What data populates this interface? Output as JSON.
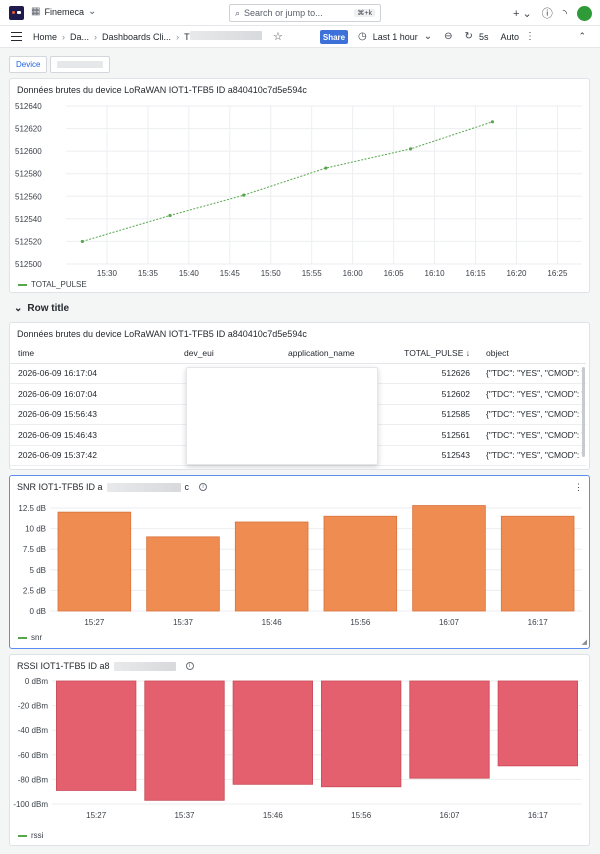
{
  "topbar": {
    "org_name": "Finemeca",
    "search_placeholder": "Search or jump to...",
    "search_shortcut": "⌘+k",
    "icons": [
      "grafana-logo",
      "org-icon",
      "chevron-down-icon",
      "search-icon",
      "plus-icon",
      "chevron-down-icon",
      "help-icon",
      "rss-icon",
      "avatar"
    ]
  },
  "navbar": {
    "home": "Home",
    "crumb_1": "Da...",
    "crumb_2": "Dashboards Cli...",
    "crumb_3": "T",
    "share": "Share",
    "time_range": "Last 1 hour",
    "refresh": "5s",
    "auto": "Auto"
  },
  "variables": {
    "device_label": "Device"
  },
  "panel1": {
    "title": "Données brutes du device LoRaWAN IOT1-TFB5 ID a840410c7d5e594c",
    "legend": "TOTAL_PULSE",
    "color": "#56a64b"
  },
  "row": {
    "title": "Row title"
  },
  "panel2": {
    "title": "Données brutes du device LoRaWAN IOT1-TFB5 ID a840410c7d5e594c",
    "columns": [
      "time",
      "dev_eui",
      "application_name",
      "TOTAL_PULSE",
      "object"
    ],
    "sort_indicator": "↓",
    "rows": [
      [
        "2026-06-09 16:17:04",
        "",
        "",
        "512626",
        "{\"TDC\": \"YES\", \"CMOD\": \""
      ],
      [
        "2026-06-09 16:07:04",
        "",
        "",
        "512602",
        "{\"TDC\": \"YES\", \"CMOD\": \""
      ],
      [
        "2026-06-09 15:56:43",
        "",
        "",
        "512585",
        "{\"TDC\": \"YES\", \"CMOD\": \""
      ],
      [
        "2026-06-09 15:46:43",
        "",
        "",
        "512561",
        "{\"TDC\": \"YES\", \"CMOD\": \""
      ],
      [
        "2026-06-09 15:37:42",
        "",
        "",
        "512543",
        "{\"TDC\": \"YES\", \"CMOD\": \""
      ]
    ]
  },
  "panel3": {
    "title_prefix": "SNR IOT1-TFB5 ID a",
    "title_suffix": "c",
    "legend": "snr",
    "color": "#ef8c52"
  },
  "panel4": {
    "title_prefix": "RSSI IOT1-TFB5 ID a8",
    "legend": "rssi",
    "color": "#e5606e"
  },
  "chart_data": [
    {
      "type": "line",
      "title": "Données brutes du device LoRaWAN IOT1-TFB5 ID a840410c7d5e594c",
      "x_ticks": [
        "15:30",
        "15:35",
        "15:40",
        "15:45",
        "15:50",
        "15:55",
        "16:00",
        "16:05",
        "16:10",
        "16:15",
        "16:20",
        "16:25"
      ],
      "y_ticks": [
        512500,
        512520,
        512540,
        512560,
        512580,
        512600,
        512620,
        512640
      ],
      "ylim": [
        512500,
        512640
      ],
      "series": [
        {
          "name": "TOTAL_PULSE",
          "x": [
            "15:27",
            "15:37:42",
            "15:46:43",
            "15:56:43",
            "16:07:04",
            "16:17:04"
          ],
          "values": [
            512520,
            512543,
            512561,
            512585,
            512602,
            512626
          ]
        }
      ],
      "grid": true,
      "legend": "bottom-left"
    },
    {
      "type": "bar",
      "title": "SNR IOT1-TFB5 ID a…c",
      "categories": [
        "15:27",
        "15:37",
        "15:46",
        "15:56",
        "16:07",
        "16:17"
      ],
      "y_ticks": [
        "12.5 dB",
        "10 dB",
        "7.5 dB",
        "5 dB",
        "2.5 dB",
        "0 dB"
      ],
      "ylim": [
        0,
        12.5
      ],
      "series": [
        {
          "name": "snr",
          "values": [
            12,
            9,
            10.8,
            11.5,
            12.8,
            11.5
          ]
        }
      ],
      "legend": "bottom-left"
    },
    {
      "type": "bar",
      "title": "RSSI IOT1-TFB5 ID a8…",
      "categories": [
        "15:27",
        "15:37",
        "15:46",
        "15:56",
        "16:07",
        "16:17"
      ],
      "y_ticks": [
        "0 dBm",
        "-20 dBm",
        "-40 dBm",
        "-60 dBm",
        "-80 dBm",
        "-100 dBm"
      ],
      "ylim": [
        -100,
        0
      ],
      "series": [
        {
          "name": "rssi",
          "values": [
            -89,
            -97,
            -84,
            -86,
            -79,
            -69
          ]
        }
      ],
      "legend": "bottom-left"
    }
  ]
}
